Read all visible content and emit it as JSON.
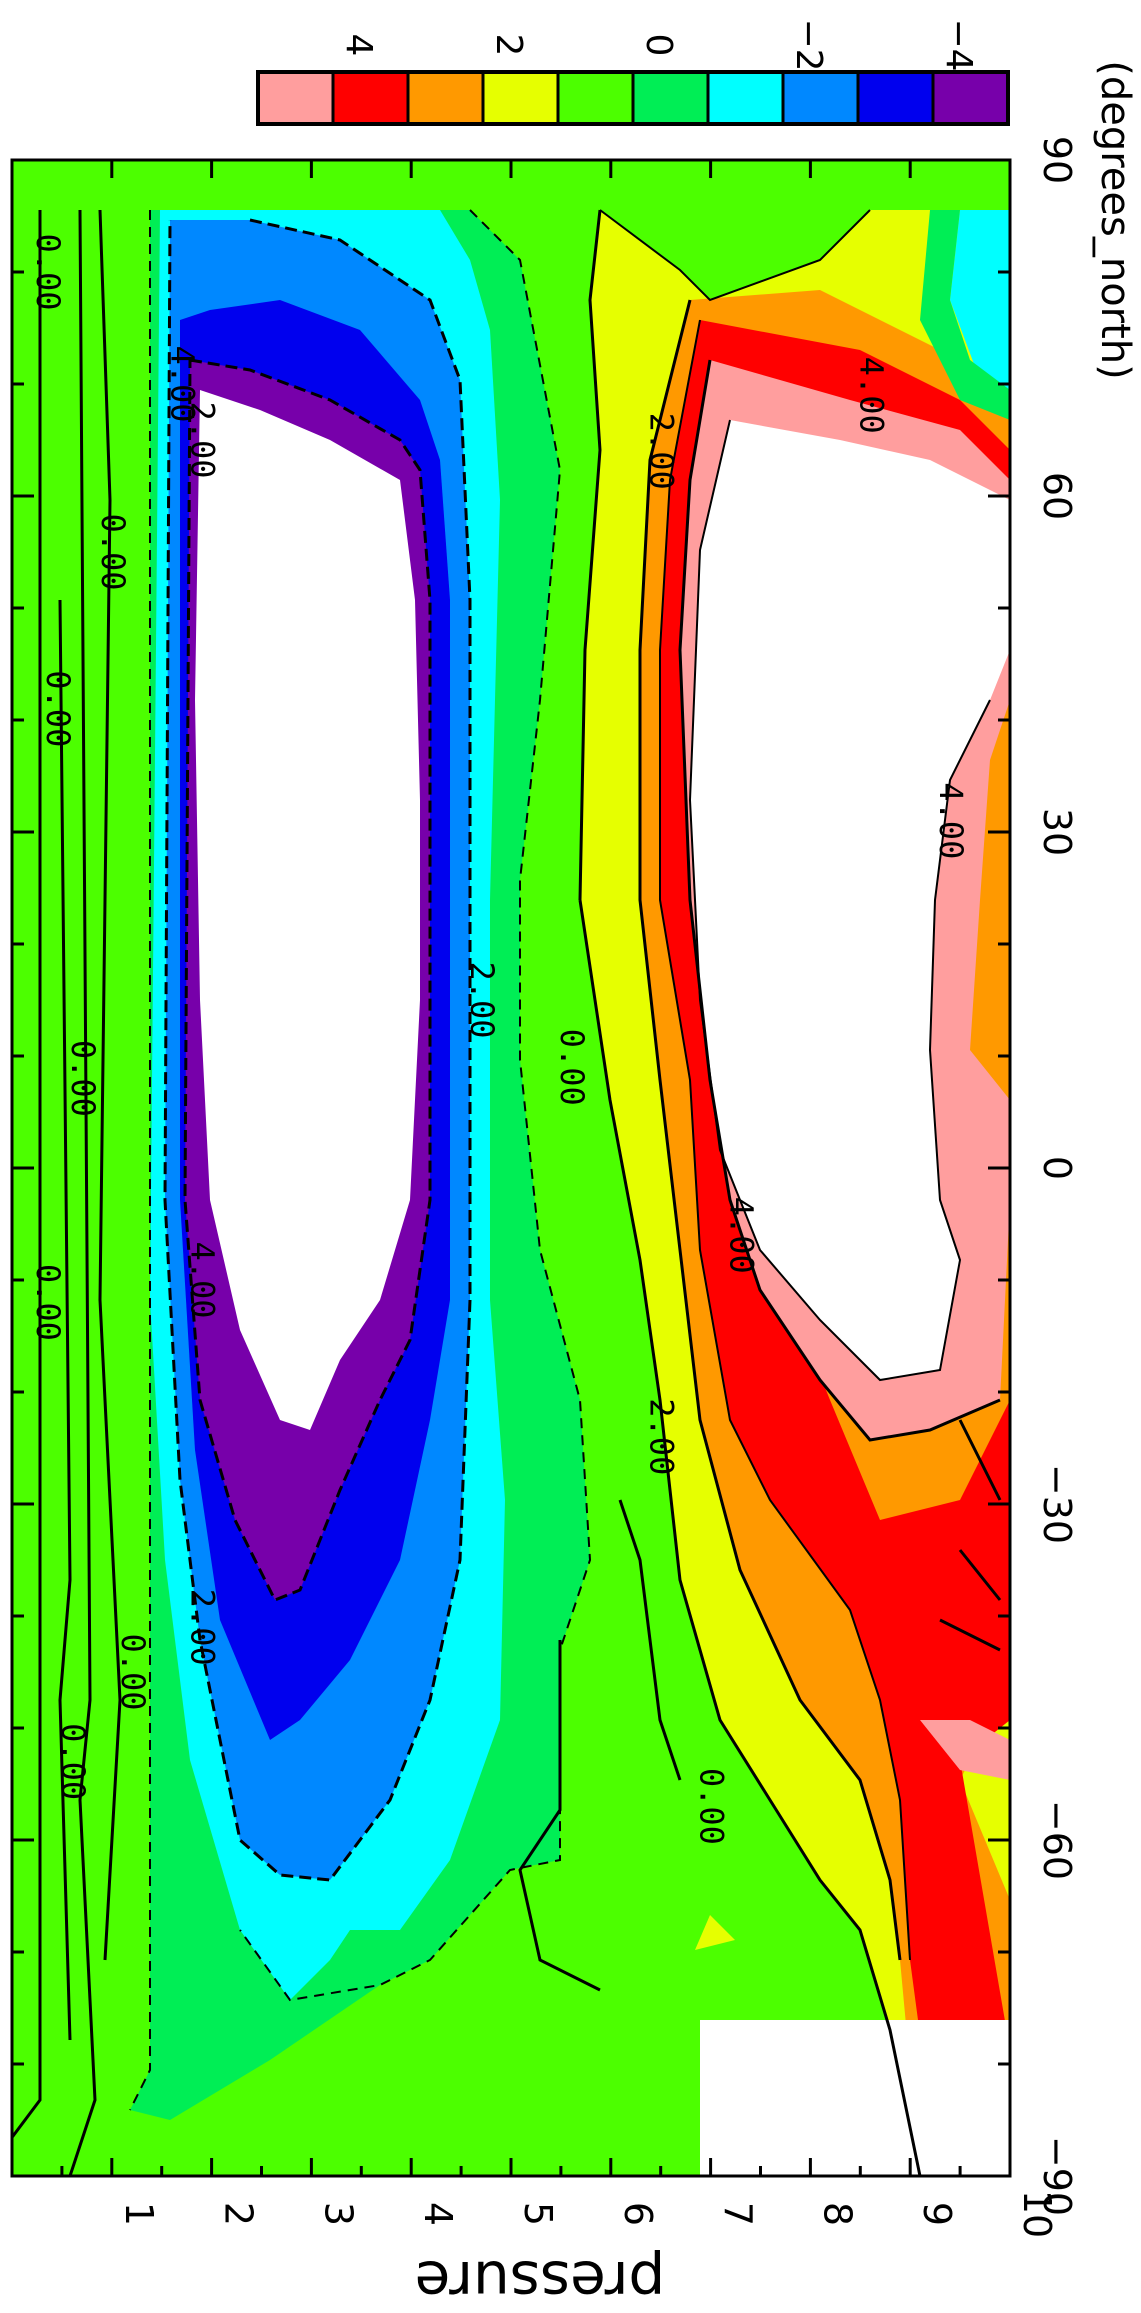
{
  "chart_data": {
    "type": "heatmap",
    "title": "",
    "subtitle": "",
    "xlabel": "pressure",
    "ylabel": "(degrees_north)",
    "orientation": "rotated 90deg clockwise",
    "xlim": [
      10,
      0
    ],
    "ylim": [
      -90,
      90
    ],
    "x_ticks": [
      "1",
      "2",
      "3",
      "4",
      "5",
      "6",
      "7",
      "8",
      "9",
      "10"
    ],
    "y_ticks": [
      "−90",
      "−60",
      "−30",
      "0",
      "30",
      "60",
      "90"
    ],
    "colorbar": {
      "tick_labels": [
        "4",
        "2",
        "0",
        "−2",
        "−4"
      ],
      "colors": [
        "#ff9e9e",
        "#ff0000",
        "#ff9900",
        "#e6ff00",
        "#4cff00",
        "#00ee55",
        "#00ffff",
        "#0088ff",
        "#0000ee",
        "#7700aa"
      ]
    },
    "contour_labels": [
      {
        "text": "0.00",
        "x": 0.25,
        "y": 80
      },
      {
        "text": "0.00",
        "x": 0.9,
        "y": 55
      },
      {
        "text": "0.00",
        "x": 0.35,
        "y": 41
      },
      {
        "text": "0.00",
        "x": 0.6,
        "y": 8
      },
      {
        "text": "0.00",
        "x": 0.25,
        "y": -12
      },
      {
        "text": "0.00",
        "x": 1.1,
        "y": -45
      },
      {
        "text": "0.00",
        "x": 0.5,
        "y": -53
      },
      {
        "text": "2.00",
        "x": 1.8,
        "y": 65
      },
      {
        "text": "4.00",
        "x": 1.6,
        "y": 70
      },
      {
        "text": "4.00",
        "x": 1.8,
        "y": -10
      },
      {
        "text": "2.00",
        "x": 1.8,
        "y": -41
      },
      {
        "text": "2.00",
        "x": 4.6,
        "y": 15
      },
      {
        "text": "0.00",
        "x": 5.5,
        "y": 9
      },
      {
        "text": "2.00",
        "x": 6.4,
        "y": 64
      },
      {
        "text": "4.00",
        "x": 8.5,
        "y": 69
      },
      {
        "text": "4.00",
        "x": 9.3,
        "y": 31
      },
      {
        "text": "4.00",
        "x": 7.2,
        "y": -6
      },
      {
        "text": "2.00",
        "x": 6.4,
        "y": -24
      },
      {
        "text": "0.00",
        "x": 6.9,
        "y": -57
      }
    ]
  }
}
